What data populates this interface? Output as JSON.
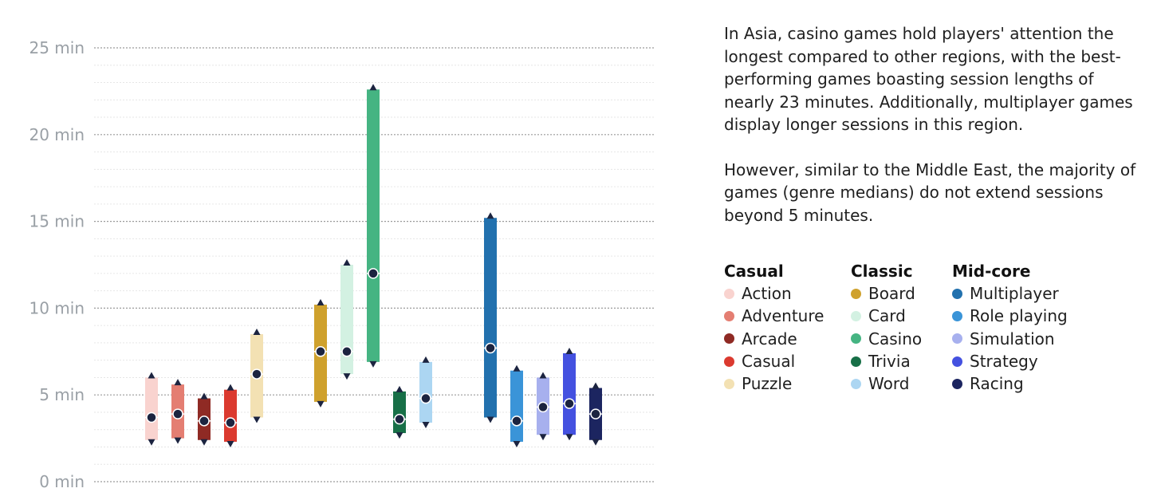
{
  "chart_data": {
    "type": "range",
    "y_ticks": [
      "25 min",
      "20 min",
      "15 min",
      "10 min",
      "5 min",
      "0 min"
    ],
    "y_tick_values": [
      25,
      20,
      15,
      10,
      5,
      0
    ],
    "ylim": [
      0,
      25
    ],
    "grid": true,
    "groups": [
      {
        "name": "Casual",
        "series": [
          {
            "name": "Action",
            "color": "#f9d3cf",
            "min": 2.4,
            "median": 3.7,
            "max": 6.0
          },
          {
            "name": "Adventure",
            "color": "#e47e72",
            "min": 2.5,
            "median": 3.9,
            "max": 5.6
          },
          {
            "name": "Arcade",
            "color": "#8f2a24",
            "min": 2.4,
            "median": 3.5,
            "max": 4.8
          },
          {
            "name": "Casual",
            "color": "#db3a2f",
            "min": 2.3,
            "median": 3.4,
            "max": 5.3
          },
          {
            "name": "Puzzle",
            "color": "#f3e1b3",
            "min": 3.7,
            "median": 6.2,
            "max": 8.5
          }
        ]
      },
      {
        "name": "Classic",
        "series": [
          {
            "name": "Board",
            "color": "#cfa12d",
            "min": 4.6,
            "median": 7.5,
            "max": 10.2
          },
          {
            "name": "Card",
            "color": "#d3f1e2",
            "min": 6.2,
            "median": 7.5,
            "max": 12.5
          },
          {
            "name": "Casino",
            "color": "#45b482",
            "min": 6.9,
            "median": 12.0,
            "max": 22.6
          },
          {
            "name": "Trivia",
            "color": "#176f47",
            "min": 2.8,
            "median": 3.6,
            "max": 5.2
          },
          {
            "name": "Word",
            "color": "#acd6f2",
            "min": 3.4,
            "median": 4.8,
            "max": 6.9
          }
        ]
      },
      {
        "name": "Mid-core",
        "series": [
          {
            "name": "Multiplayer",
            "color": "#2271ae",
            "min": 3.7,
            "median": 7.7,
            "max": 15.2
          },
          {
            "name": "Role playing",
            "color": "#3a94d8",
            "min": 2.3,
            "median": 3.5,
            "max": 6.4
          },
          {
            "name": "Simulation",
            "color": "#a7b0ee",
            "min": 2.7,
            "median": 4.3,
            "max": 6.0
          },
          {
            "name": "Strategy",
            "color": "#4451e0",
            "min": 2.7,
            "median": 4.5,
            "max": 7.4
          },
          {
            "name": "Racing",
            "color": "#1c2560",
            "min": 2.4,
            "median": 3.9,
            "max": 5.4
          }
        ]
      }
    ]
  },
  "description": {
    "paragraph1": "In Asia, casino games hold players' attention the longest compared to other regions, with the best-performing games boasting session lengths of nearly 23 minutes. Additionally, multiplayer games display longer sessions in this region.",
    "paragraph2": "However, similar to the Middle East, the majority of games (genre medians) do not extend sessions beyond 5 minutes."
  },
  "colors": {
    "marker": "#1c2440",
    "grid_major": "#9a9a9a",
    "grid_minor": "#e6e6e6",
    "tick_text": "#9aa0a6"
  }
}
